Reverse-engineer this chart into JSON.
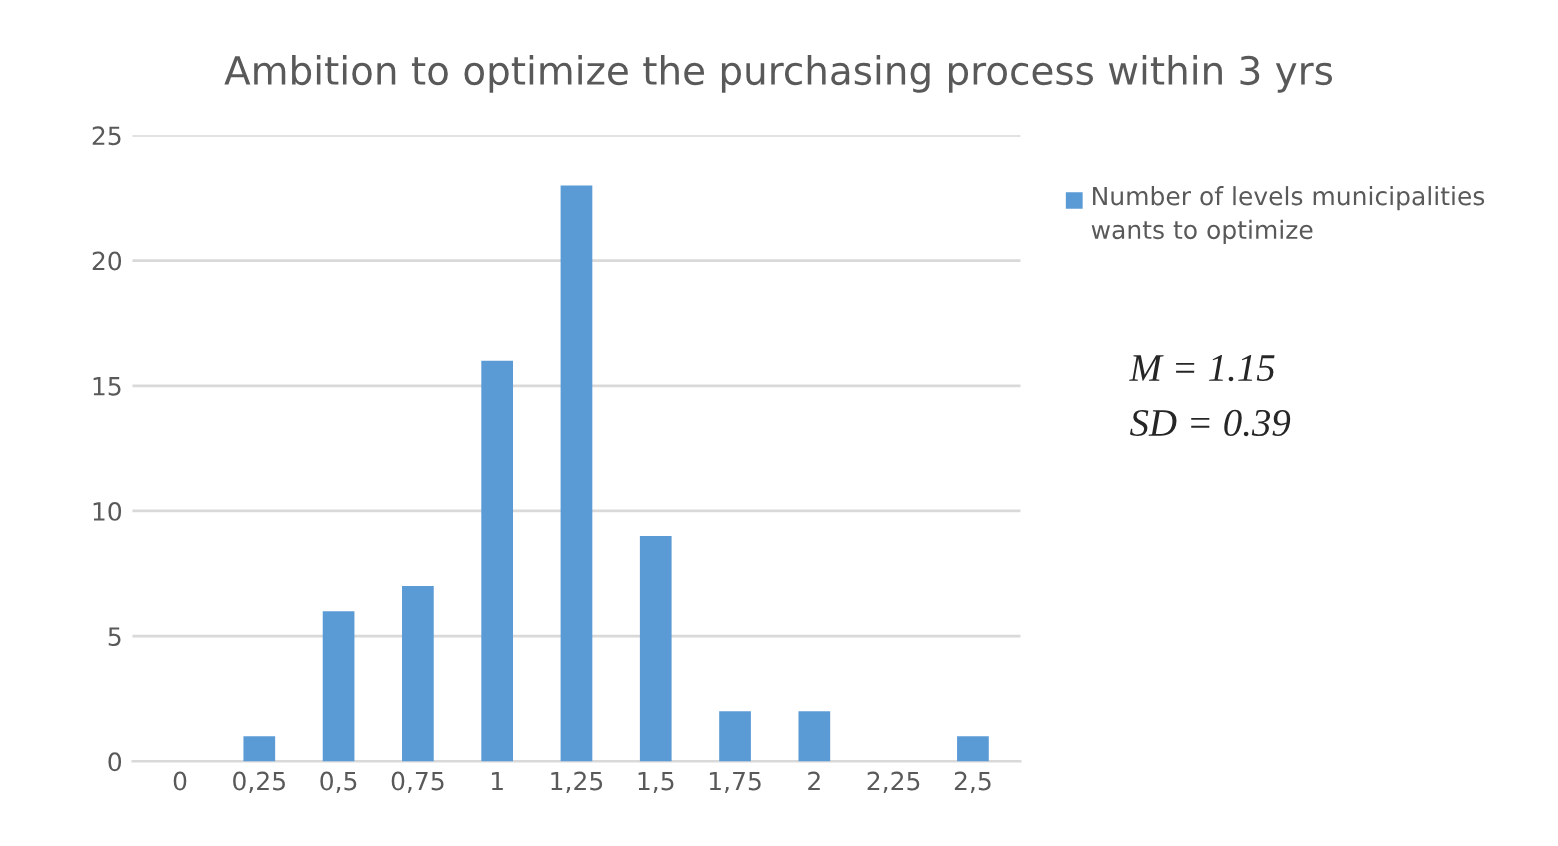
{
  "chart_data": {
    "type": "bar",
    "title": "Ambition to optimize the purchasing process within 3 yrs",
    "categories": [
      "0",
      "0,25",
      "0,5",
      "0,75",
      "1",
      "1,25",
      "1,5",
      "1,75",
      "2",
      "2,25",
      "2,5"
    ],
    "series": [
      {
        "name": "Number of levels municipalities wants to optimize",
        "color": "#5b9bd5",
        "values": [
          0,
          1,
          6,
          7,
          16,
          23,
          9,
          2,
          2,
          0,
          1
        ]
      }
    ],
    "ylim": [
      0,
      25
    ],
    "yticks": [
      0,
      5,
      10,
      15,
      20,
      25
    ],
    "grid": "y",
    "legend": "right",
    "annotations": [
      "M = 1.15",
      "SD = 0.39"
    ]
  }
}
